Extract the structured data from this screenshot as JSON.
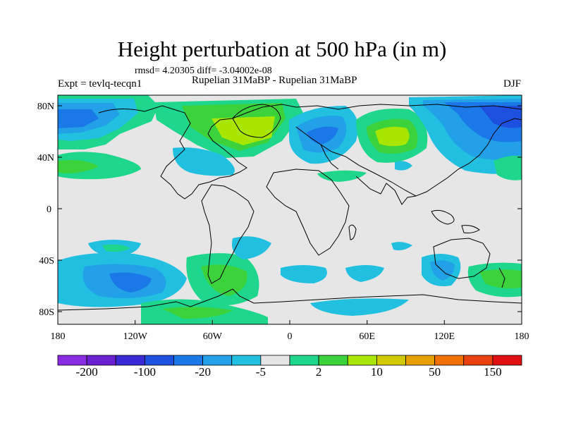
{
  "title": "Height perturbation at 500 hPa (in m)",
  "stats": "rmsd= 4.20305 diff= -3.04002e-08",
  "expt": "Expt = tevlq-tecqn1",
  "comparison": "Rupelian  31MaBP - Rupelian  31MaBP",
  "season": "DJF",
  "y_ticks": [
    "80N",
    "40N",
    "0",
    "40S",
    "80S"
  ],
  "x_ticks": [
    "180",
    "120W",
    "60W",
    "0",
    "60E",
    "120E",
    "180"
  ],
  "colorbar": {
    "colors": [
      "#8a2be2",
      "#6a1fd0",
      "#3a2ad6",
      "#1e50e0",
      "#1a78e8",
      "#22a0e8",
      "#22c0e0",
      "#e6e6e6",
      "#1ed78c",
      "#3cd23c",
      "#a8e600",
      "#d2c800",
      "#e6a000",
      "#f07000",
      "#ea4010",
      "#e01010"
    ],
    "labels": [
      "-200",
      "-100",
      "-20",
      "-5",
      "2",
      "10",
      "50",
      "150"
    ]
  },
  "map_colors": {
    "background": "#e6e6e6",
    "land_outline": "#000000",
    "blue_strong": "#1e50e0",
    "blue_mid": "#1a78e8",
    "blue_light": "#22a0e8",
    "cyan": "#22c0e0",
    "aqua_green": "#1ed78c",
    "green": "#3cd23c",
    "yellow_green": "#a8e600"
  }
}
